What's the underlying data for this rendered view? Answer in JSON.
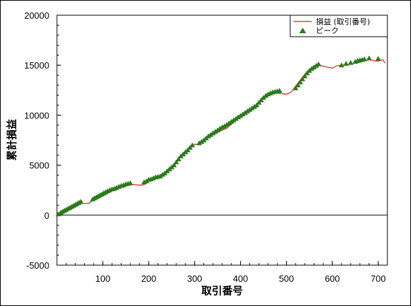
{
  "chart_data": {
    "type": "line",
    "title": "",
    "xlabel": "取引番号",
    "ylabel": "累計損益",
    "xlim": [
      0,
      720
    ],
    "ylim": [
      -5000,
      20000
    ],
    "x_ticks": [
      100,
      200,
      300,
      400,
      500,
      600,
      700
    ],
    "y_ticks": [
      -5000,
      0,
      5000,
      10000,
      15000,
      20000
    ],
    "x_tick_labels": [
      "100",
      "200",
      "300",
      "400",
      "500",
      "600",
      "700"
    ],
    "y_tick_labels": [
      "-5000",
      "0",
      "5000",
      "10000",
      "15000",
      "20000"
    ],
    "zero_line": true,
    "grid": false,
    "legend_position": "top-right",
    "colors": {
      "line": "#e8171b",
      "peak": "#2a7a1c"
    },
    "series": [
      {
        "name": "損益 (取引番号)",
        "kind": "line",
        "x": [
          0,
          5,
          12,
          20,
          30,
          40,
          50,
          60,
          70,
          80,
          90,
          100,
          110,
          120,
          130,
          140,
          150,
          160,
          170,
          180,
          190,
          200,
          210,
          220,
          230,
          240,
          250,
          260,
          270,
          280,
          290,
          300,
          310,
          320,
          330,
          340,
          350,
          360,
          370,
          380,
          390,
          400,
          410,
          420,
          430,
          440,
          450,
          460,
          470,
          480,
          490,
          500,
          510,
          520,
          530,
          540,
          550,
          560,
          570,
          580,
          590,
          600,
          610,
          620,
          630,
          640,
          650,
          660,
          670,
          680,
          690,
          700,
          710,
          715
        ],
        "y": [
          0,
          0,
          200,
          500,
          650,
          1000,
          1300,
          1150,
          1200,
          1550,
          1900,
          2150,
          2400,
          2600,
          2700,
          2800,
          3000,
          3100,
          3050,
          3000,
          3050,
          3400,
          3650,
          3800,
          3950,
          4300,
          4700,
          5200,
          5900,
          6300,
          6800,
          7100,
          7050,
          7500,
          7950,
          8100,
          8300,
          8500,
          8700,
          9100,
          9500,
          9800,
          10150,
          10500,
          10800,
          11300,
          11800,
          12150,
          12300,
          12200,
          12150,
          12100,
          12300,
          12900,
          13500,
          14100,
          14550,
          14900,
          15050,
          14900,
          14800,
          14700,
          14950,
          15000,
          15050,
          15100,
          15200,
          15300,
          15450,
          15550,
          15450,
          15400,
          15550,
          15200
        ]
      },
      {
        "name": "ピーク",
        "kind": "marker",
        "x": [
          3,
          8,
          12,
          16,
          20,
          24,
          28,
          32,
          36,
          40,
          44,
          48,
          52,
          78,
          82,
          86,
          90,
          94,
          98,
          102,
          106,
          110,
          115,
          120,
          125,
          130,
          135,
          140,
          145,
          150,
          155,
          160,
          190,
          195,
          200,
          205,
          210,
          215,
          220,
          225,
          230,
          235,
          240,
          245,
          250,
          255,
          260,
          265,
          270,
          275,
          280,
          285,
          290,
          295,
          310,
          315,
          320,
          325,
          330,
          335,
          340,
          345,
          350,
          355,
          360,
          365,
          370,
          375,
          380,
          385,
          390,
          395,
          400,
          405,
          410,
          415,
          420,
          425,
          430,
          435,
          440,
          445,
          450,
          455,
          460,
          465,
          470,
          475,
          480,
          485,
          520,
          525,
          530,
          535,
          540,
          545,
          550,
          555,
          560,
          565,
          570,
          620,
          630,
          640,
          650,
          655,
          660,
          665,
          670,
          680,
          700
        ],
        "y": [
          100,
          250,
          350,
          450,
          550,
          650,
          750,
          850,
          950,
          1050,
          1150,
          1250,
          1350,
          1600,
          1700,
          1800,
          1900,
          2000,
          2100,
          2200,
          2300,
          2400,
          2500,
          2600,
          2650,
          2750,
          2850,
          2950,
          3000,
          3100,
          3150,
          3200,
          3300,
          3400,
          3550,
          3600,
          3700,
          3800,
          3850,
          3900,
          4050,
          4200,
          4400,
          4600,
          4800,
          5000,
          5300,
          5600,
          5900,
          6100,
          6300,
          6500,
          6750,
          7000,
          7200,
          7350,
          7500,
          7700,
          7900,
          8050,
          8200,
          8350,
          8500,
          8650,
          8800,
          8900,
          9050,
          9200,
          9350,
          9500,
          9650,
          9800,
          9950,
          10100,
          10250,
          10400,
          10550,
          10700,
          10850,
          11000,
          11250,
          11500,
          11750,
          11950,
          12100,
          12200,
          12300,
          12350,
          12400,
          12450,
          12700,
          13000,
          13300,
          13600,
          13900,
          14200,
          14450,
          14650,
          14800,
          14950,
          15100,
          15000,
          15150,
          15250,
          15350,
          15450,
          15500,
          15550,
          15600,
          15700,
          15650
        ]
      }
    ]
  }
}
